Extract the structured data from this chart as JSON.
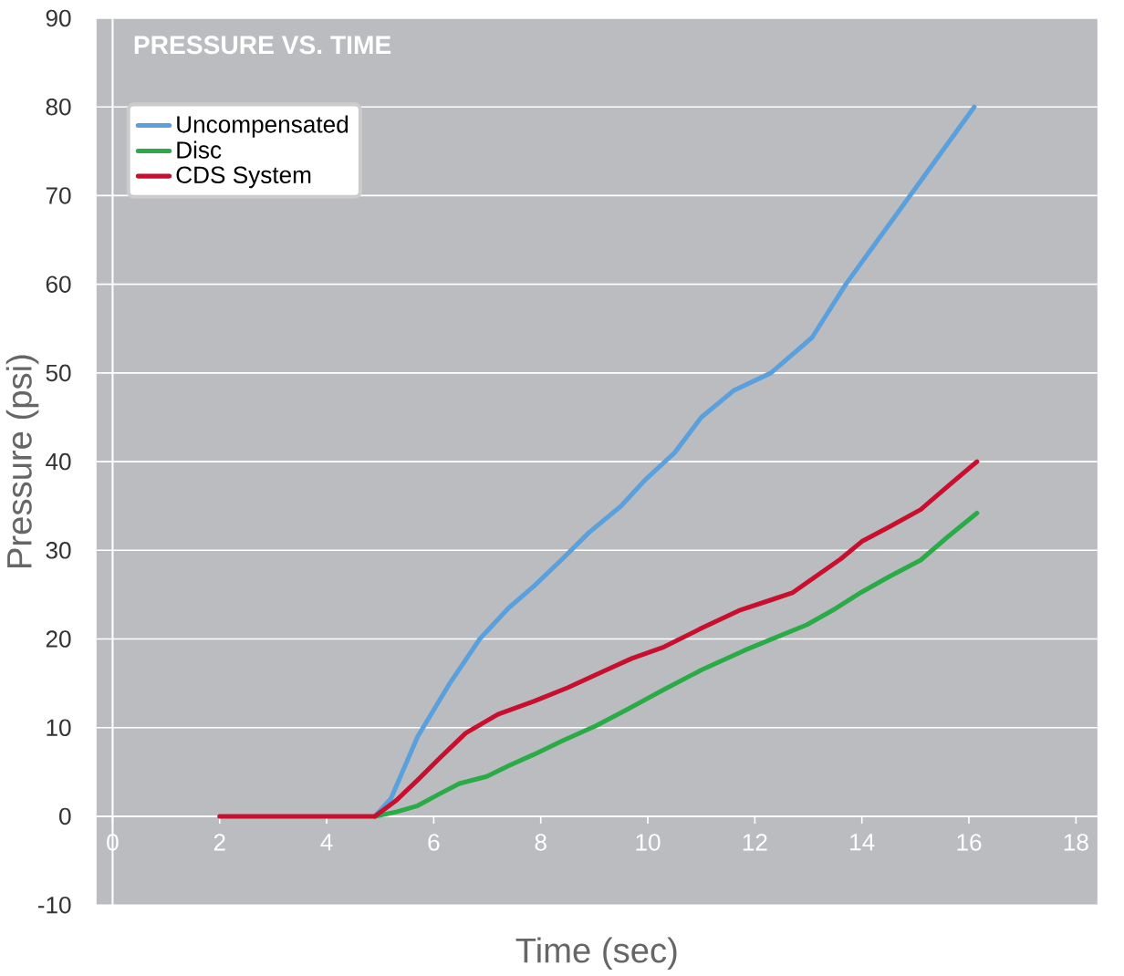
{
  "chart_data": {
    "type": "line",
    "title": "PRESSURE VS. TIME",
    "xlabel": "Time (sec)",
    "ylabel": "Pressure (psi)",
    "xlim": [
      -0.3,
      18.4
    ],
    "ylim": [
      -10,
      90
    ],
    "xticks": [
      0,
      2,
      4,
      6,
      8,
      10,
      12,
      14,
      16,
      18
    ],
    "yticks": [
      -10,
      0,
      10,
      20,
      30,
      40,
      50,
      60,
      70,
      80,
      90
    ],
    "grid": "y",
    "legend": "top left",
    "marker": "none",
    "line_style": "solid",
    "series": [
      {
        "name": "Uncompensated",
        "color": "#5aa0dc",
        "x": [
          4.9,
          5.2,
          5.7,
          6.3,
          6.86,
          7.4,
          7.88,
          8.4,
          8.9,
          9.5,
          9.96,
          10.5,
          11.0,
          11.6,
          12.3,
          13.07,
          13.7,
          14.3,
          14.9,
          15.5,
          16.1
        ],
        "values": [
          0,
          2,
          9,
          15,
          20,
          23.5,
          26,
          29,
          32,
          35,
          38,
          41,
          45,
          48,
          50,
          54,
          60,
          65,
          70,
          75,
          80
        ]
      },
      {
        "name": "Disc",
        "color": "#2bab47",
        "x": [
          4.9,
          5.3,
          5.7,
          6.1,
          6.48,
          6.99,
          7.4,
          7.88,
          8.4,
          9.03,
          9.6,
          10.3,
          11.0,
          11.8,
          12.4,
          12.97,
          13.5,
          14.0,
          14.5,
          15.1,
          15.6,
          16.15
        ],
        "values": [
          0,
          0.5,
          1.2,
          2.5,
          3.7,
          4.5,
          5.7,
          7.0,
          8.5,
          10.2,
          12.0,
          14.3,
          16.5,
          18.7,
          20.2,
          21.6,
          23.4,
          25.3,
          27.0,
          28.9,
          31.5,
          34.2
        ]
      },
      {
        "name": "CDS System",
        "color": "#c8102e",
        "x": [
          2,
          3,
          4,
          4.9,
          5.3,
          5.7,
          6.1,
          6.6,
          7.2,
          7.88,
          8.5,
          9.15,
          9.7,
          10.3,
          11.0,
          11.7,
          12.3,
          12.7,
          13.1,
          13.6,
          14.0,
          14.5,
          15.1,
          15.6,
          16.15
        ],
        "values": [
          0,
          0,
          0,
          0,
          1.8,
          4.1,
          6.5,
          9.4,
          11.5,
          13.0,
          14.5,
          16.3,
          17.8,
          19.1,
          21.2,
          23.2,
          24.4,
          25.2,
          26.9,
          29.0,
          31.0,
          32.6,
          34.6,
          37.2,
          40.0
        ]
      }
    ]
  }
}
